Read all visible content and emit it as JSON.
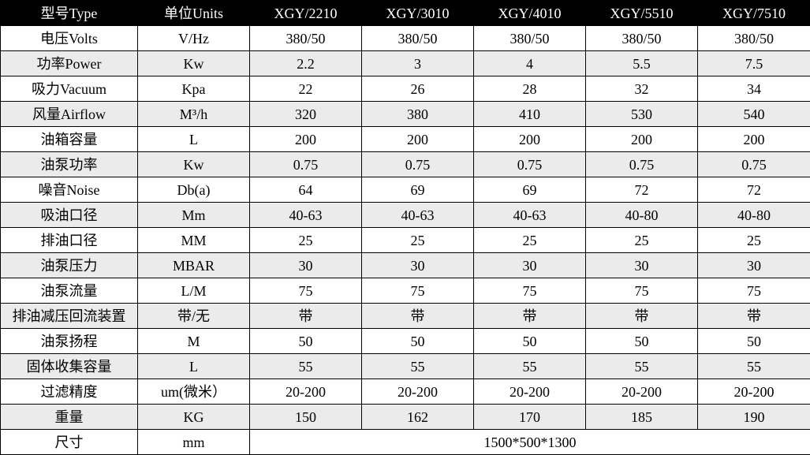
{
  "header": {
    "param": "型号Type",
    "unit": "单位Units",
    "models": [
      "XGY/2210",
      "XGY/3010",
      "XGY/4010",
      "XGY/5510",
      "XGY/7510"
    ]
  },
  "rows": [
    {
      "param": "电压Volts",
      "unit": "V/Hz",
      "values": [
        "380/50",
        "380/50",
        "380/50",
        "380/50",
        "380/50"
      ]
    },
    {
      "param": "功率Power",
      "unit": "Kw",
      "values": [
        "2.2",
        "3",
        "4",
        "5.5",
        "7.5"
      ]
    },
    {
      "param": "吸力Vacuum",
      "unit": "Kpa",
      "values": [
        "22",
        "26",
        "28",
        "32",
        "34"
      ]
    },
    {
      "param": "风量Airflow",
      "unit": "M³/h",
      "values": [
        "320",
        "380",
        "410",
        "530",
        "540"
      ]
    },
    {
      "param": "油箱容量",
      "unit": "L",
      "values": [
        "200",
        "200",
        "200",
        "200",
        "200"
      ]
    },
    {
      "param": "油泵功率",
      "unit": "Kw",
      "values": [
        "0.75",
        "0.75",
        "0.75",
        "0.75",
        "0.75"
      ]
    },
    {
      "param": "噪音Noise",
      "unit": "Db(a)",
      "values": [
        "64",
        "69",
        "69",
        "72",
        "72"
      ]
    },
    {
      "param": "吸油口径",
      "unit": "Mm",
      "values": [
        "40-63",
        "40-63",
        "40-63",
        "40-80",
        "40-80"
      ]
    },
    {
      "param": "排油口径",
      "unit": "MM",
      "values": [
        "25",
        "25",
        "25",
        "25",
        "25"
      ]
    },
    {
      "param": "油泵压力",
      "unit": "MBAR",
      "values": [
        "30",
        "30",
        "30",
        "30",
        "30"
      ]
    },
    {
      "param": "油泵流量",
      "unit": "L/M",
      "values": [
        "75",
        "75",
        "75",
        "75",
        "75"
      ]
    },
    {
      "param": "排油减压回流装置",
      "unit": "带/无",
      "values": [
        "带",
        "带",
        "带",
        "带",
        "带"
      ]
    },
    {
      "param": "油泵扬程",
      "unit": "M",
      "values": [
        "50",
        "50",
        "50",
        "50",
        "50"
      ]
    },
    {
      "param": "固体收集容量",
      "unit": "L",
      "values": [
        "55",
        "55",
        "55",
        "55",
        "55"
      ]
    },
    {
      "param": "过滤精度",
      "unit": "um(微米）",
      "values": [
        "20-200",
        "20-200",
        "20-200",
        "20-200",
        "20-200"
      ]
    },
    {
      "param": "重量",
      "unit": "KG",
      "values": [
        "150",
        "162",
        "170",
        "185",
        "190"
      ]
    }
  ],
  "footer": {
    "param": "尺寸",
    "unit": "mm",
    "value": "1500*500*1300"
  },
  "colors": {
    "header_bg": "#000000",
    "header_text": "#ffffff",
    "alt_row_bg": "#ebebeb",
    "border": "#000000"
  }
}
